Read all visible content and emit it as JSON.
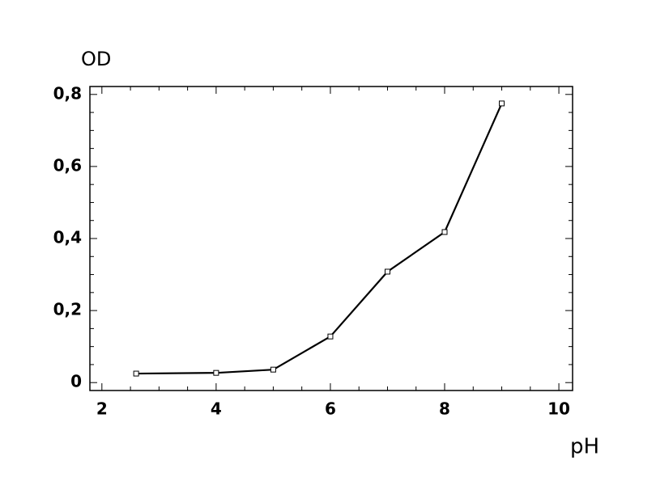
{
  "chart_data": {
    "type": "line",
    "ylabel": "OD",
    "xlabel": "pH",
    "x": [
      2.6,
      4,
      5,
      6,
      7,
      8,
      9
    ],
    "series": [
      {
        "color": "#000000",
        "values": [
          0.025,
          0.027,
          0.036,
          0.128,
          0.308,
          0.418,
          0.775
        ]
      }
    ],
    "xlim": [
      1.79,
      10.24
    ],
    "ylim": [
      -0.022,
      0.822
    ],
    "xticks": [
      2,
      4,
      6,
      8,
      10
    ],
    "yticks": [
      0,
      {
        "value": 0.2,
        "label": "0,2"
      },
      {
        "value": 0.4,
        "label": "0,4"
      },
      {
        "value": 0.6,
        "label": "0,6"
      },
      {
        "value": 0.8,
        "label": "0,8"
      }
    ],
    "xminorticks": [
      2.5,
      3,
      3.5,
      4.5,
      5,
      5.5,
      6.5,
      7,
      7.5,
      8.5,
      9,
      9.5
    ],
    "yminorticks": [
      0.05,
      0.1,
      0.15,
      0.25,
      0.3,
      0.35,
      0.45,
      0.5,
      0.55,
      0.65,
      0.7,
      0.75
    ],
    "grid": false
  }
}
